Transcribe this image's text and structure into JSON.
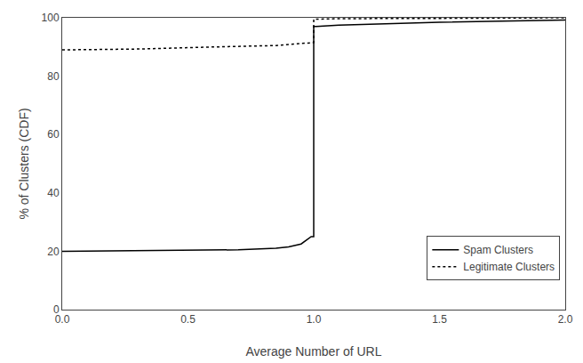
{
  "chart_data": {
    "type": "line",
    "x_label": "Average Number of URL",
    "y_label": "% of Clusters (CDF)",
    "xlim": [
      0,
      2
    ],
    "ylim": [
      0,
      100
    ],
    "xticks": [
      {
        "value": 0,
        "label": "0.0"
      },
      0.5,
      {
        "value": 1.0,
        "label": "1.0"
      },
      1.5,
      {
        "value": 2.0,
        "label": "2.0"
      }
    ],
    "yticks": [
      0,
      20,
      40,
      60,
      80,
      100
    ],
    "grid": false,
    "legend": "lower right",
    "series": [
      {
        "name": "Spam Clusters",
        "color": "#000000",
        "line_style": "solid",
        "x": [
          0.0,
          0.5,
          0.7,
          0.85,
          0.9,
          0.95,
          0.99,
          1.0,
          1.0,
          1.01,
          1.1,
          1.5,
          1.8,
          2.0
        ],
        "values": [
          20.0,
          20.2,
          20.5,
          21.0,
          21.5,
          22.5,
          25.0,
          25.0,
          97.0,
          97.0,
          97.5,
          98.5,
          99.0,
          99.2
        ]
      },
      {
        "name": "Legitimate Clusters",
        "color": "#000000",
        "line_style": "dotted",
        "x": [
          0.0,
          0.3,
          0.6,
          0.85,
          0.92,
          0.99,
          1.0,
          1.0,
          1.01,
          1.1,
          1.5,
          2.0
        ],
        "values": [
          89.0,
          89.3,
          90.0,
          90.5,
          91.0,
          91.5,
          91.5,
          99.5,
          99.5,
          99.7,
          99.8,
          100.0
        ]
      }
    ]
  }
}
